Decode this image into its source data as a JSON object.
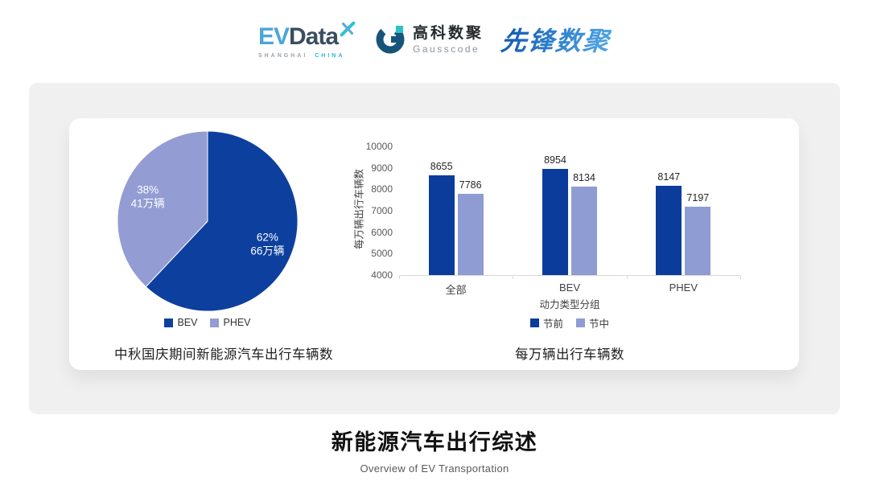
{
  "header": {
    "evdata": {
      "ev": "EV",
      "data": "Data",
      "sub_left": "SHANGHAI",
      "sub_right": "CHINA"
    },
    "gausscode": {
      "cn": "高科数聚",
      "en": "Gausscode"
    },
    "xianfeng": {
      "text": "先锋数聚"
    }
  },
  "footer": {
    "title": "新能源汽车出行综述",
    "subtitle": "Overview of EV Transportation"
  },
  "colors": {
    "dark_blue": "#0d409e",
    "light_blue": "#8f9cd3",
    "panel_gray": "#f0f0f1",
    "axis_gray": "#d9d9d9"
  },
  "chart_data": [
    {
      "type": "pie",
      "title": "中秋国庆期间新能源汽车出行车辆数",
      "labels": [
        "BEV",
        "PHEV"
      ],
      "values_pct": [
        62,
        38
      ],
      "values": [
        66,
        41
      ],
      "unit": "万辆",
      "slice_texts": [
        [
          "62%",
          "66万辆"
        ],
        [
          "38%",
          "41万辆"
        ]
      ],
      "colors": [
        "#0d409e",
        "#939dd3"
      ],
      "start_angle": "top",
      "direction": "clockwise",
      "legend_position": "bottom",
      "label_color": "#ffffff"
    },
    {
      "type": "bar",
      "title": "每万辆出行车辆数",
      "categories": [
        "全部",
        "BEV",
        "PHEV"
      ],
      "series": [
        {
          "name": "节前",
          "values": [
            8655,
            8954,
            8147
          ],
          "color": "#0b3c9b"
        },
        {
          "name": "节中",
          "values": [
            7786,
            8134,
            7197
          ],
          "color": "#8f9cd3"
        }
      ],
      "xlabel": "动力类型分组",
      "ylabel": "每万辆出行车辆数",
      "ylim": [
        4000,
        10000
      ],
      "ytick_step": 1000,
      "grid": false,
      "legend_position": "bottom",
      "value_labels": true
    }
  ]
}
